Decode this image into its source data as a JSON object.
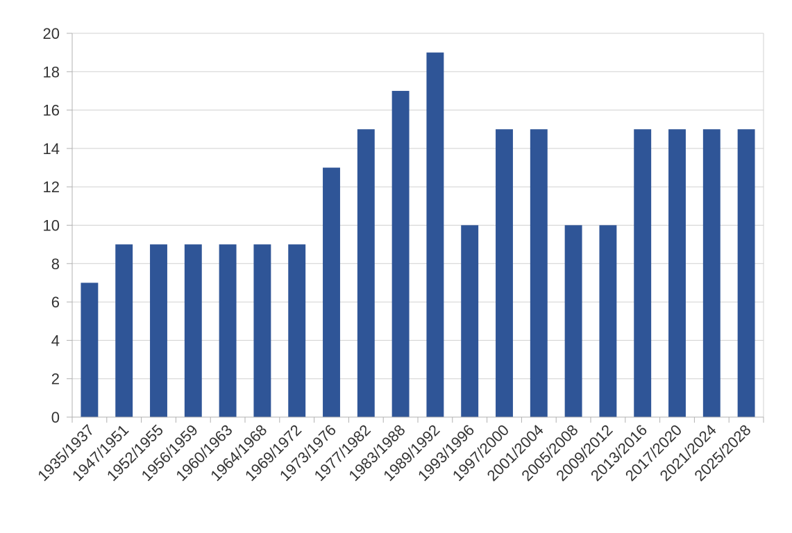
{
  "chart_data": {
    "type": "bar",
    "title": "",
    "xlabel": "",
    "ylabel": "",
    "categories": [
      "1935/1937",
      "1947/1951",
      "1952/1955",
      "1956/1959",
      "1960/1963",
      "1964/1968",
      "1969/1972",
      "1973/1976",
      "1977/1982",
      "1983/1988",
      "1989/1992",
      "1993/1996",
      "1997/2000",
      "2001/2004",
      "2005/2008",
      "2009/2012",
      "2013/2016",
      "2017/2020",
      "2021/2024",
      "2025/2028"
    ],
    "values": [
      7,
      9,
      9,
      9,
      9,
      9,
      9,
      13,
      15,
      17,
      19,
      10,
      15,
      15,
      10,
      10,
      15,
      15,
      15,
      15
    ],
    "ylim": [
      0,
      20
    ],
    "yticks": [
      0,
      2,
      4,
      6,
      8,
      10,
      12,
      14,
      16,
      18,
      20
    ],
    "grid": true,
    "legend": "none",
    "colors": {
      "bar": "#2f5597",
      "grid": "#d0d0d0",
      "axis": "#b0b0b0",
      "text": "#333333"
    }
  }
}
